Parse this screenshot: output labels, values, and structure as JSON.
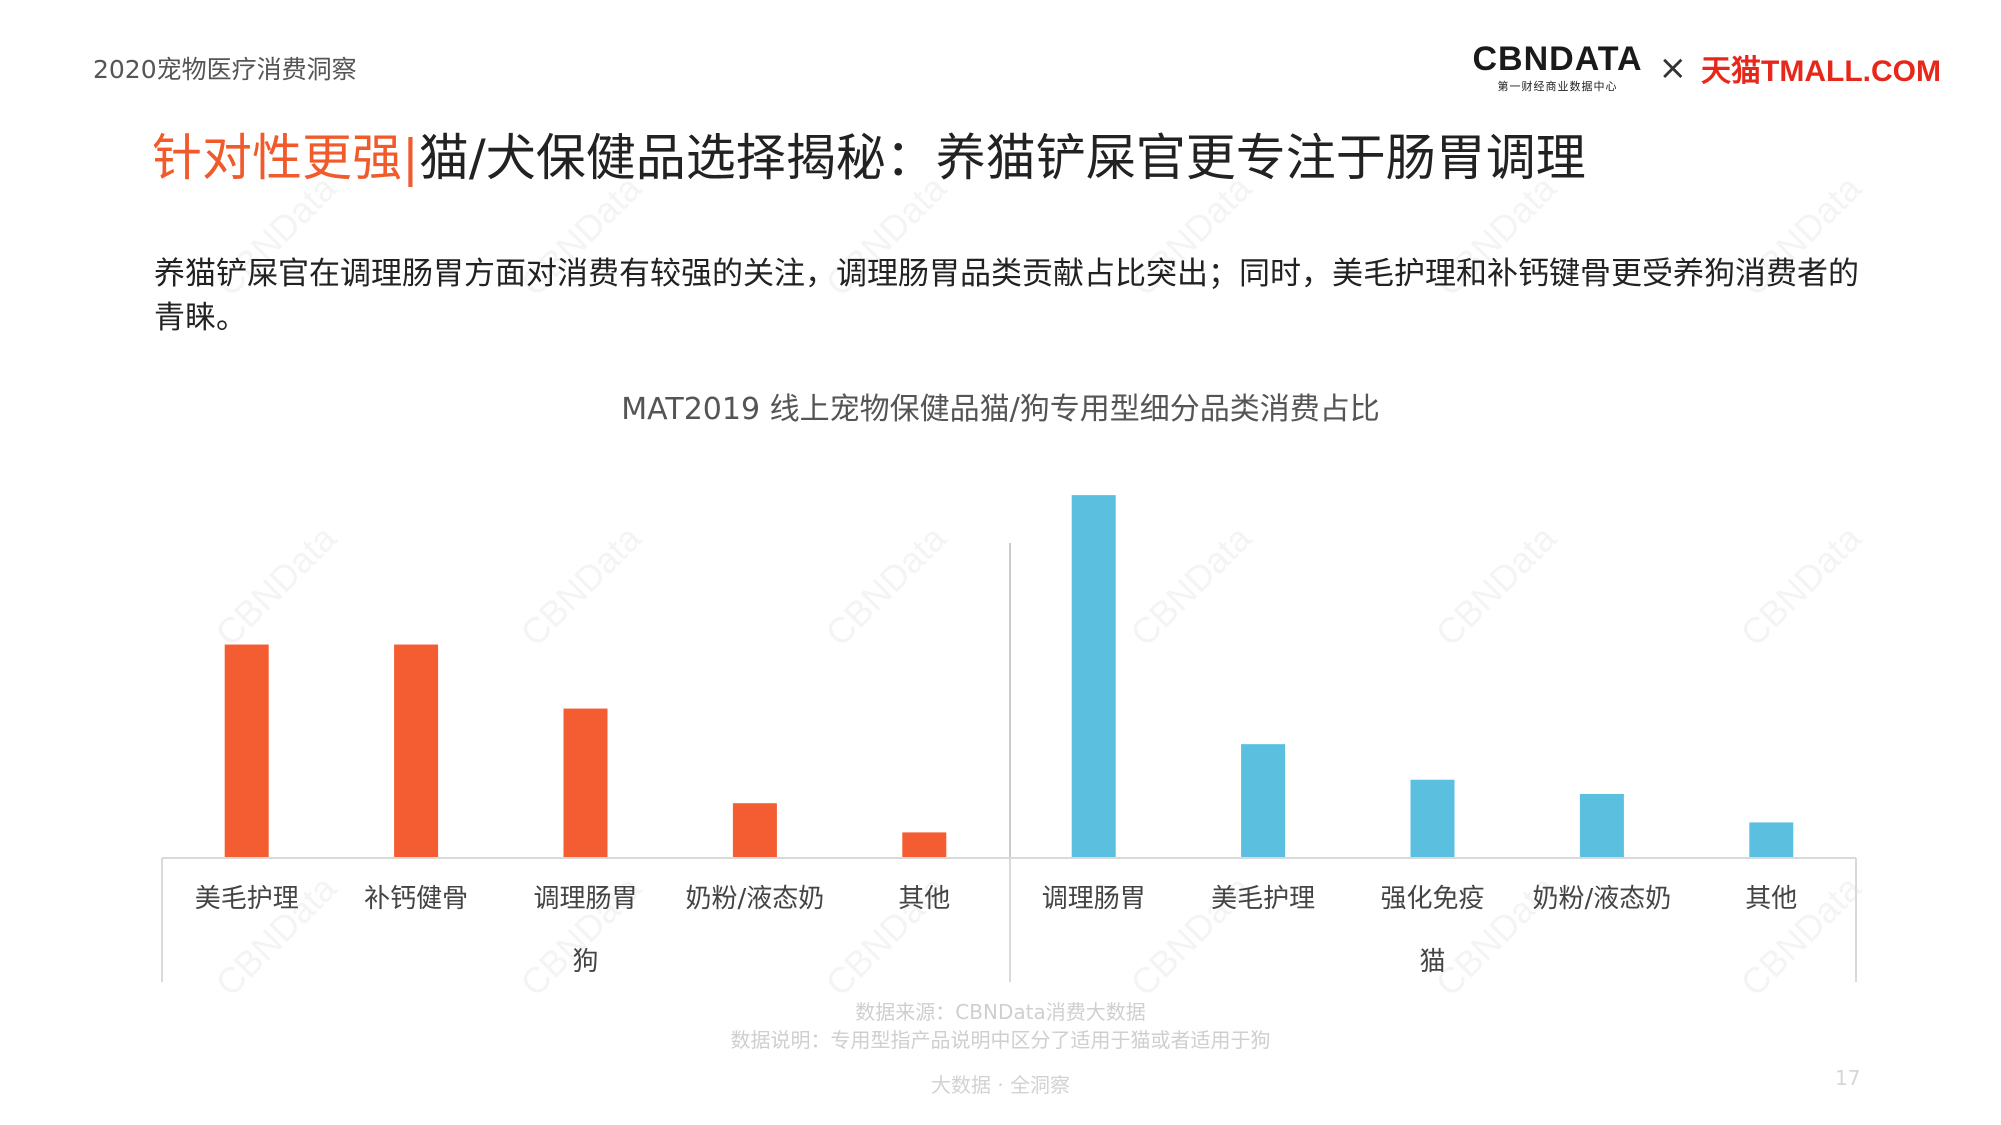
{
  "header": {
    "report_title": "2020宠物医疗消费洞察",
    "logo_cbn_main": "CBNDATA",
    "logo_cbn_sub": "第一财经商业数据中心",
    "logo_separator": "×",
    "logo_tmall": "天猫TMALL.COM"
  },
  "headline": {
    "accent": "针对性更强",
    "separator": "|",
    "main": "猫/犬保健品选择揭秘：养猫铲屎官更专注于肠胃调理"
  },
  "description": "养猫铲屎官在调理肠胃方面对消费有较强的关注，调理肠胃品类贡献占比突出；同时，美毛护理和补钙键骨更受养狗消费者的青睐。",
  "chart_data": {
    "type": "bar",
    "title": "MAT2019 线上宠物保健品猫/狗专用型细分品类消费占比",
    "groups": [
      {
        "name": "狗",
        "color": "#f35d31",
        "categories": [
          "美毛护理",
          "补钙健骨",
          "调理肠胃",
          "奶粉/液态奶",
          "其他"
        ],
        "values": [
          30,
          30,
          21,
          7.7,
          3.6
        ]
      },
      {
        "name": "猫",
        "color": "#5bc0e0",
        "categories": [
          "调理肠胃",
          "美毛护理",
          "强化免疫",
          "奶粉/液态奶",
          "其他"
        ],
        "values": [
          51,
          16,
          11,
          9,
          5
        ]
      }
    ],
    "ylim": [
      0,
      52
    ],
    "grid": false,
    "xlabel": "",
    "ylabel": ""
  },
  "footer": {
    "source": "数据来源：CBNData消费大数据",
    "note": "数据说明：专用型指产品说明中区分了适用于猫或者适用于狗",
    "tagline": "大数据 · 全洞察",
    "page_number": "17"
  },
  "watermark": "CBNData",
  "colors": {
    "accent": "#f15a2b",
    "dog_series": "#f35d31",
    "cat_series": "#5bc0e0"
  }
}
